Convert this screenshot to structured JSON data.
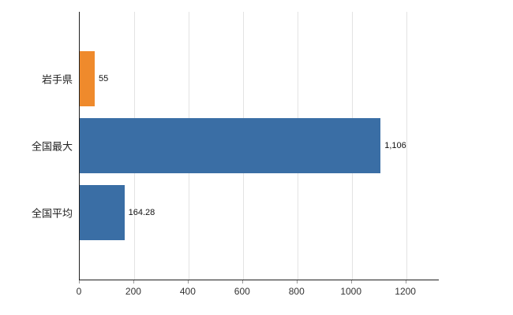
{
  "chart_data": {
    "type": "bar",
    "orientation": "horizontal",
    "title": "",
    "xlabel": "",
    "ylabel": "",
    "categories": [
      "岩手県",
      "全国最大",
      "全国平均"
    ],
    "values": [
      55,
      1106,
      164.28
    ],
    "value_labels": [
      "55",
      "1,106",
      "164.28"
    ],
    "bar_colors": [
      "#EF8A2C",
      "#3A6EA5",
      "#3A6EA5"
    ],
    "x_ticks": [
      0,
      200,
      400,
      600,
      800,
      1000,
      1200
    ],
    "x_tick_labels": [
      "0",
      "200",
      "400",
      "600",
      "800",
      "1000",
      "1200"
    ],
    "xlim": [
      0,
      1320
    ],
    "grid": "vertical",
    "legend": "none"
  },
  "colors": {
    "bar_orange": "#EF8A2C",
    "bar_blue": "#3A6EA5",
    "axis": "#1f1f1f",
    "gridline": "#e3e3e3",
    "tick_text": "#333333",
    "category_text": "#222222",
    "value_text": "#111111",
    "background": "#ffffff"
  }
}
